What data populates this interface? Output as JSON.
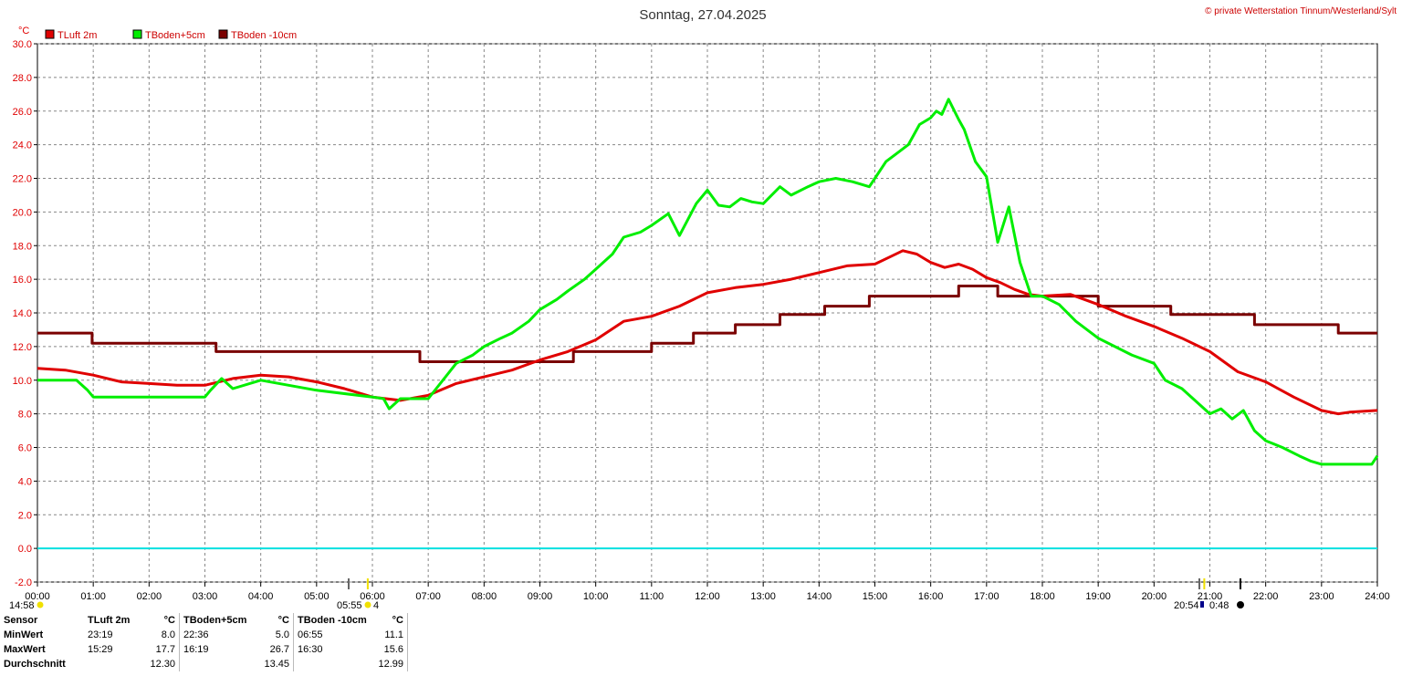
{
  "title": "Sonntag, 27.04.2025",
  "copyright": "© private Wetterstation Tinnum/Westerland/Sylt",
  "unit": "°C",
  "sun": {
    "sunrise": "05:55",
    "sunset": "20:54",
    "rise_time_left": "14:58",
    "moonphase": "4",
    "moon_time": "0:48"
  },
  "colors": {
    "tluft": "#e00000",
    "tboden5": "#00ee00",
    "tboden10": "#7a0000",
    "zero": "#00e0e0",
    "grid": "#888888"
  },
  "stats": {
    "header": [
      "Sensor",
      "TLuft 2m",
      "°C",
      "TBoden+5cm",
      "°C",
      "TBoden -10cm",
      "°C"
    ],
    "rows": [
      {
        "label": "MinWert",
        "t1": "23:19",
        "v1": "8.0",
        "t2": "22:36",
        "v2": "5.0",
        "t3": "06:55",
        "v3": "11.1"
      },
      {
        "label": "MaxWert",
        "t1": "15:29",
        "v1": "17.7",
        "t2": "16:19",
        "v2": "26.7",
        "t3": "16:30",
        "v3": "15.6"
      },
      {
        "label": "Durchschnitt",
        "t1": "",
        "v1": "12.30",
        "t2": "",
        "v2": "13.45",
        "t3": "",
        "v3": "12.99"
      }
    ]
  },
  "chart_data": {
    "type": "line",
    "title": "Sonntag, 27.04.2025",
    "ylabel": "°C",
    "xlim": [
      0,
      24
    ],
    "ylim": [
      -2,
      30
    ],
    "grid": true,
    "legend_placement": "top-left",
    "x_ticks": [
      "00:00",
      "01:00",
      "02:00",
      "03:00",
      "04:00",
      "05:00",
      "06:00",
      "07:00",
      "08:00",
      "09:00",
      "10:00",
      "11:00",
      "12:00",
      "13:00",
      "14:00",
      "15:00",
      "16:00",
      "17:00",
      "18:00",
      "19:00",
      "20:00",
      "21:00",
      "22:00",
      "23:00",
      "24:00"
    ],
    "y_ticks": [
      "-2.0",
      "0.0",
      "2.0",
      "4.0",
      "6.0",
      "8.0",
      "10.0",
      "12.0",
      "14.0",
      "16.0",
      "18.0",
      "20.0",
      "22.0",
      "24.0",
      "26.0",
      "28.0",
      "30.0"
    ],
    "series": [
      {
        "name": "TLuft 2m",
        "color": "#e00000",
        "x": [
          0,
          0.5,
          1,
          1.5,
          2,
          2.5,
          3,
          3.5,
          4,
          4.5,
          5,
          5.5,
          6,
          6.5,
          7,
          7.5,
          8,
          8.5,
          9,
          9.5,
          10,
          10.5,
          11,
          11.5,
          12,
          12.5,
          13,
          13.5,
          14,
          14.5,
          15,
          15.25,
          15.5,
          15.75,
          16,
          16.25,
          16.5,
          16.75,
          17,
          17.25,
          17.5,
          17.75,
          18,
          18.5,
          19,
          19.5,
          20,
          20.5,
          21,
          21.5,
          22,
          22.5,
          23,
          23.3,
          23.5,
          24
        ],
        "y": [
          10.7,
          10.6,
          10.3,
          9.9,
          9.8,
          9.7,
          9.7,
          10.1,
          10.3,
          10.2,
          9.9,
          9.5,
          9.0,
          8.8,
          9.1,
          9.8,
          10.2,
          10.6,
          11.2,
          11.7,
          12.4,
          13.5,
          13.8,
          14.4,
          15.2,
          15.5,
          15.7,
          16.0,
          16.4,
          16.8,
          16.9,
          17.3,
          17.7,
          17.5,
          17.0,
          16.7,
          16.9,
          16.6,
          16.1,
          15.8,
          15.4,
          15.1,
          15.0,
          15.1,
          14.5,
          13.8,
          13.2,
          12.5,
          11.7,
          10.5,
          9.9,
          9.0,
          8.2,
          8.0,
          8.1,
          8.2
        ]
      },
      {
        "name": "TBoden+5cm",
        "color": "#00ee00",
        "x": [
          0,
          0.7,
          0.9,
          1,
          2,
          3,
          3.1,
          3.3,
          3.5,
          4,
          5,
          6,
          6.2,
          6.3,
          6.5,
          7,
          7.5,
          7.8,
          8,
          8.3,
          8.5,
          8.8,
          9,
          9.3,
          9.5,
          9.8,
          10,
          10.3,
          10.5,
          10.8,
          11,
          11.3,
          11.5,
          11.8,
          12,
          12.2,
          12.4,
          12.6,
          12.8,
          13,
          13.3,
          13.5,
          13.8,
          14,
          14.3,
          14.6,
          14.9,
          15,
          15.2,
          15.4,
          15.6,
          15.8,
          16,
          16.1,
          16.2,
          16.32,
          16.5,
          16.6,
          16.8,
          17,
          17.2,
          17.4,
          17.6,
          17.8,
          18,
          18.3,
          18.6,
          19,
          19.3,
          19.6,
          20,
          20.2,
          20.5,
          20.8,
          21,
          21.2,
          21.4,
          21.6,
          21.8,
          22,
          22.3,
          22.6,
          22.8,
          23,
          23.5,
          23.9,
          24
        ],
        "y": [
          10.0,
          10.0,
          9.4,
          9.0,
          9.0,
          9.0,
          9.4,
          10.1,
          9.5,
          10.0,
          9.4,
          9.0,
          8.9,
          8.3,
          8.9,
          8.9,
          11.0,
          11.5,
          12.0,
          12.5,
          12.8,
          13.5,
          14.2,
          14.8,
          15.3,
          16.0,
          16.6,
          17.5,
          18.5,
          18.8,
          19.2,
          19.9,
          18.6,
          20.5,
          21.3,
          20.4,
          20.3,
          20.8,
          20.6,
          20.5,
          21.5,
          21.0,
          21.5,
          21.8,
          22.0,
          21.8,
          21.5,
          22.0,
          23.0,
          23.5,
          24.0,
          25.2,
          25.6,
          26.0,
          25.8,
          26.7,
          25.5,
          24.9,
          23.0,
          22.1,
          18.2,
          20.3,
          17.0,
          15.0,
          15.0,
          14.5,
          13.5,
          12.5,
          12.0,
          11.5,
          11.0,
          10.0,
          9.5,
          8.6,
          8.0,
          8.3,
          7.7,
          8.2,
          7.0,
          6.4,
          6.0,
          5.5,
          5.2,
          5.0,
          5.0,
          5.0,
          5.5
        ]
      },
      {
        "name": "TBoden -10cm",
        "color": "#7a0000",
        "x": [
          0,
          0.98,
          0.98,
          3.2,
          3.2,
          6.85,
          6.85,
          9.6,
          9.6,
          11.0,
          11.0,
          11.75,
          11.75,
          12.5,
          12.5,
          13.3,
          13.3,
          14.1,
          14.1,
          14.9,
          14.9,
          15.5,
          15.5,
          16.5,
          16.5,
          17.2,
          17.2,
          18.0,
          18.0,
          19.0,
          19.0,
          20.3,
          20.3,
          21.8,
          21.8,
          23.3,
          23.3,
          24
        ],
        "y": [
          12.8,
          12.8,
          12.2,
          12.2,
          11.7,
          11.7,
          11.1,
          11.1,
          11.7,
          11.7,
          12.2,
          12.2,
          12.8,
          12.8,
          13.3,
          13.3,
          13.9,
          13.9,
          14.4,
          14.4,
          15.0,
          15.0,
          15.0,
          15.0,
          15.6,
          15.6,
          15.0,
          15.0,
          15.0,
          15.0,
          14.4,
          14.4,
          13.9,
          13.9,
          13.3,
          13.3,
          12.8,
          12.8
        ]
      }
    ],
    "reference_lines": [
      {
        "y": 0,
        "color": "#00e0e0"
      }
    ]
  }
}
